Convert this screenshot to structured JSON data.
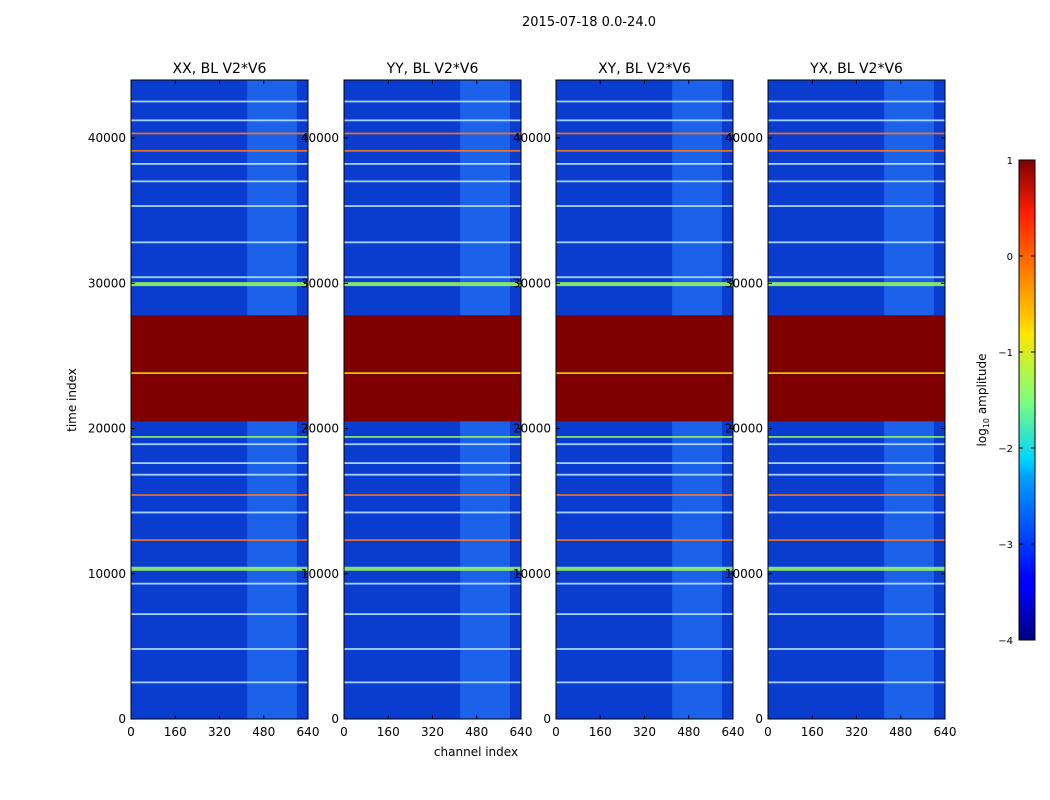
{
  "figure": {
    "suptitle": "2015-07-18 0.0-24.0"
  },
  "chart_data": [
    {
      "type": "heatmap",
      "title": "XX, BL V2*V6",
      "xlabel": "channel index",
      "ylabel": "time index",
      "xlim": [
        0,
        640
      ],
      "ylim": [
        0,
        44000
      ],
      "xticks": [
        0,
        160,
        320,
        480,
        640
      ],
      "yticks": [
        0,
        10000,
        20000,
        30000,
        40000
      ],
      "saturated_band": [
        20500,
        27800
      ]
    },
    {
      "type": "heatmap",
      "title": "YY, BL V2*V6",
      "xlabel": "channel index",
      "ylabel": "time index",
      "xlim": [
        0,
        640
      ],
      "ylim": [
        0,
        44000
      ],
      "xticks": [
        0,
        160,
        320,
        480,
        640
      ],
      "yticks": [
        0,
        10000,
        20000,
        30000,
        40000
      ],
      "saturated_band": [
        20500,
        27800
      ]
    },
    {
      "type": "heatmap",
      "title": "XY, BL V2*V6",
      "xlabel": "channel index",
      "ylabel": "time index",
      "xlim": [
        0,
        640
      ],
      "ylim": [
        0,
        44000
      ],
      "xticks": [
        0,
        160,
        320,
        480,
        640
      ],
      "yticks": [
        0,
        10000,
        20000,
        30000,
        40000
      ],
      "saturated_band": [
        20500,
        27800
      ]
    },
    {
      "type": "heatmap",
      "title": "YX, BL V2*V6",
      "xlabel": "channel index",
      "ylabel": "time index",
      "xlim": [
        0,
        640
      ],
      "ylim": [
        0,
        44000
      ],
      "xticks": [
        0,
        160,
        320,
        480,
        640
      ],
      "yticks": [
        0,
        10000,
        20000,
        30000,
        40000
      ],
      "saturated_band": [
        20500,
        27800
      ]
    }
  ],
  "colorbar": {
    "label_prefix": "log",
    "label_sub": "10",
    "label_suffix": " amplitude",
    "range": [
      -4,
      1
    ],
    "ticks": [
      1,
      0,
      -1,
      -2,
      -3,
      -4
    ],
    "tick_labels": [
      "1",
      "0",
      "−1",
      "−2",
      "−3",
      "−4"
    ],
    "colormap": "jet"
  },
  "shared_labels": {
    "xlabel": "channel index",
    "ylabel": "time index"
  },
  "colors": {
    "saturated": "#7f0000",
    "background": "#0a3cd0"
  }
}
